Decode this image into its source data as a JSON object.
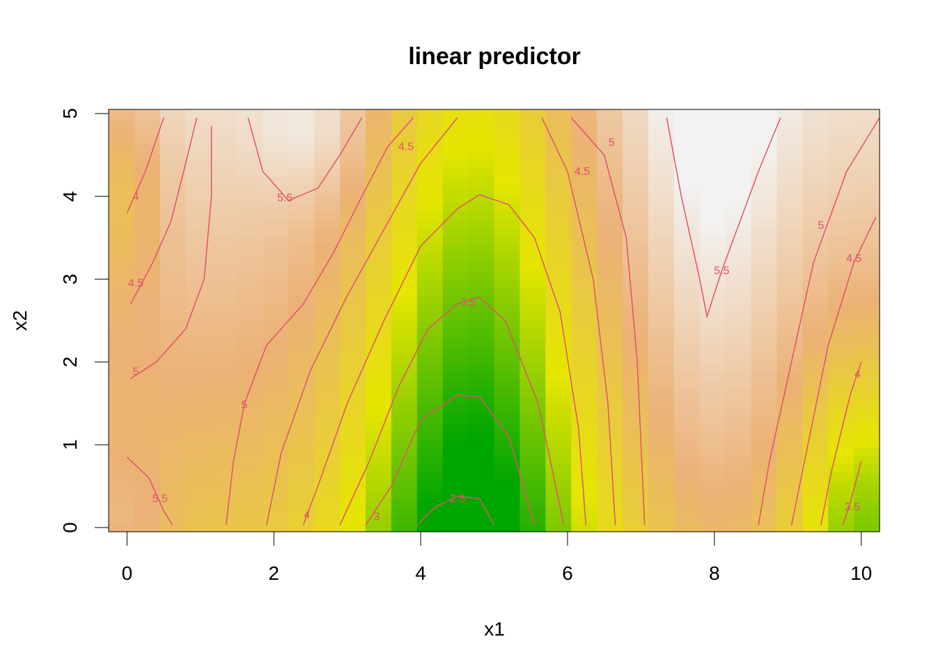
{
  "chart_data": {
    "type": "heatmap",
    "title": "linear predictor",
    "xlabel": "x1",
    "ylabel": "x2",
    "xlim": [
      -0.25,
      10.25
    ],
    "ylim": [
      -0.05,
      5.05
    ],
    "xticks": [
      0,
      2,
      4,
      6,
      8,
      10
    ],
    "xtick_labels": [
      "0",
      "2",
      "4",
      "6",
      "8",
      "10"
    ],
    "yticks": [
      0,
      1,
      2,
      3,
      4,
      5
    ],
    "ytick_labels": [
      "0",
      "1",
      "2",
      "3",
      "4",
      "5"
    ],
    "grid": false,
    "colormap": "terrain",
    "color_range": [
      2.3,
      5.9
    ],
    "palette": [
      "#00A600",
      "#E6E600",
      "#ECB176",
      "#F2F2F2"
    ],
    "contour_color": "#DF536B",
    "contours": [
      {
        "level": "2.5",
        "label_at": [
          4.5,
          0.35
        ],
        "points": [
          [
            3.95,
            0.03
          ],
          [
            4.2,
            0.25
          ],
          [
            4.5,
            0.38
          ],
          [
            4.8,
            0.35
          ],
          [
            5.0,
            0.03
          ]
        ]
      },
      {
        "level": "3",
        "label_at": [
          3.4,
          0.13
        ],
        "points": [
          [
            3.25,
            0.03
          ],
          [
            3.6,
            0.5
          ],
          [
            4.0,
            1.3
          ],
          [
            4.5,
            1.6
          ],
          [
            4.8,
            1.58
          ],
          [
            5.2,
            1.1
          ],
          [
            5.55,
            0.03
          ]
        ]
      },
      {
        "level": "3.5",
        "label_at": [
          4.65,
          2.72
        ],
        "points": [
          [
            2.9,
            0.03
          ],
          [
            3.3,
            0.8
          ],
          [
            3.7,
            1.7
          ],
          [
            4.1,
            2.4
          ],
          [
            4.5,
            2.7
          ],
          [
            4.8,
            2.78
          ],
          [
            5.15,
            2.5
          ],
          [
            5.6,
            1.5
          ],
          [
            5.95,
            0.03
          ]
        ]
      },
      {
        "level": "4",
        "label_at": [
          2.45,
          0.15
        ],
        "points": [
          [
            2.4,
            0.03
          ],
          [
            2.6,
            0.5
          ],
          [
            3.0,
            1.5
          ],
          [
            3.5,
            2.5
          ],
          [
            4.0,
            3.4
          ],
          [
            4.5,
            3.85
          ],
          [
            4.8,
            4.02
          ],
          [
            5.2,
            3.9
          ],
          [
            5.55,
            3.5
          ],
          [
            5.9,
            2.6
          ],
          [
            6.15,
            1.2
          ],
          [
            6.25,
            0.03
          ]
        ]
      },
      {
        "level": "4",
        "label_at": [
          0.12,
          4.0
        ],
        "points": [
          [
            0.0,
            3.8
          ],
          [
            0.25,
            4.3
          ],
          [
            0.5,
            4.95
          ]
        ]
      },
      {
        "level": "4",
        "label_at": [
          9.95,
          1.85
        ],
        "points": [
          [
            9.45,
            0.03
          ],
          [
            9.6,
            0.7
          ],
          [
            9.85,
            1.6
          ],
          [
            10.0,
            2.0
          ]
        ]
      },
      {
        "level": "3.5",
        "label_at": [
          9.88,
          0.25
        ],
        "points": [
          [
            9.75,
            0.03
          ],
          [
            9.85,
            0.3
          ],
          [
            10.0,
            0.8
          ]
        ]
      },
      {
        "level": "4.5",
        "label_at": [
          0.12,
          2.95
        ],
        "points": [
          [
            0.05,
            2.7
          ],
          [
            0.35,
            3.2
          ],
          [
            0.6,
            3.7
          ],
          [
            0.8,
            4.4
          ],
          [
            0.95,
            4.95
          ]
        ]
      },
      {
        "level": "4.5",
        "label_at": [
          3.8,
          4.6
        ],
        "points": [
          [
            1.9,
            0.03
          ],
          [
            2.1,
            0.9
          ],
          [
            2.5,
            1.9
          ],
          [
            3.0,
            2.8
          ],
          [
            3.5,
            3.6
          ],
          [
            4.0,
            4.4
          ],
          [
            4.5,
            4.95
          ]
        ]
      },
      {
        "level": "4.5",
        "label_at": [
          6.2,
          4.3
        ],
        "points": [
          [
            5.65,
            4.95
          ],
          [
            6.0,
            4.3
          ],
          [
            6.35,
            3.0
          ],
          [
            6.55,
            1.5
          ],
          [
            6.65,
            0.03
          ]
        ]
      },
      {
        "level": "4.5",
        "label_at": [
          9.9,
          3.25
        ],
        "points": [
          [
            9.05,
            0.03
          ],
          [
            9.25,
            0.9
          ],
          [
            9.55,
            2.2
          ],
          [
            9.9,
            3.2
          ],
          [
            10.2,
            3.75
          ]
        ]
      },
      {
        "level": "5",
        "label_at": [
          0.12,
          1.88
        ],
        "points": [
          [
            0.05,
            1.8
          ],
          [
            0.4,
            2.0
          ],
          [
            0.8,
            2.4
          ],
          [
            1.05,
            3.0
          ],
          [
            1.15,
            4.0
          ],
          [
            1.15,
            4.85
          ]
        ]
      },
      {
        "level": "5",
        "label_at": [
          1.6,
          1.48
        ],
        "points": [
          [
            1.35,
            0.03
          ],
          [
            1.45,
            0.8
          ],
          [
            1.6,
            1.5
          ],
          [
            1.9,
            2.2
          ],
          [
            2.4,
            2.7
          ],
          [
            2.8,
            3.3
          ],
          [
            3.2,
            4.0
          ],
          [
            3.55,
            4.6
          ],
          [
            3.9,
            4.95
          ]
        ]
      },
      {
        "level": "5",
        "label_at": [
          6.6,
          4.65
        ],
        "points": [
          [
            6.05,
            4.95
          ],
          [
            6.5,
            4.5
          ],
          [
            6.8,
            3.5
          ],
          [
            6.95,
            2.0
          ],
          [
            7.05,
            0.03
          ]
        ]
      },
      {
        "level": "5",
        "label_at": [
          9.45,
          3.65
        ],
        "points": [
          [
            8.6,
            0.03
          ],
          [
            8.75,
            0.8
          ],
          [
            9.05,
            2.0
          ],
          [
            9.35,
            3.2
          ],
          [
            9.8,
            4.3
          ],
          [
            10.25,
            4.95
          ]
        ]
      },
      {
        "level": "5.5",
        "label_at": [
          0.45,
          0.35
        ],
        "points": [
          [
            0.0,
            0.85
          ],
          [
            0.3,
            0.6
          ],
          [
            0.5,
            0.2
          ],
          [
            0.62,
            0.03
          ]
        ]
      },
      {
        "level": "5.5",
        "label_at": [
          2.15,
          3.98
        ],
        "points": [
          [
            1.65,
            4.95
          ],
          [
            1.85,
            4.3
          ],
          [
            2.2,
            3.95
          ],
          [
            2.6,
            4.1
          ],
          [
            2.9,
            4.5
          ],
          [
            3.2,
            4.95
          ]
        ]
      },
      {
        "level": "5.5",
        "label_at": [
          8.1,
          3.1
        ],
        "points": [
          [
            7.35,
            4.95
          ],
          [
            7.55,
            4.0
          ],
          [
            7.8,
            3.0
          ],
          [
            7.9,
            2.55
          ],
          [
            8.1,
            3.1
          ],
          [
            8.6,
            4.3
          ],
          [
            8.9,
            4.95
          ]
        ]
      }
    ]
  }
}
